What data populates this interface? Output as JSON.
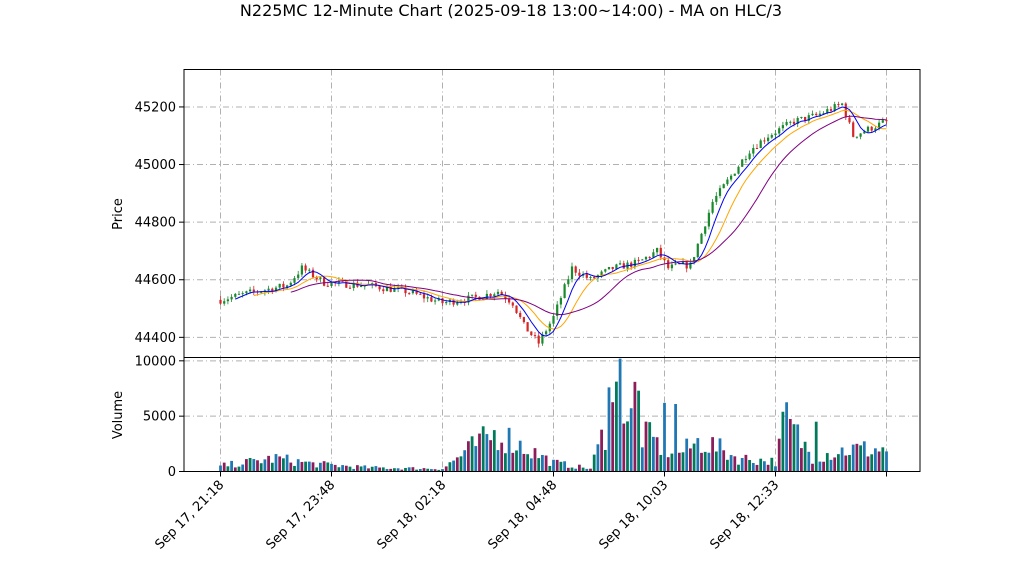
{
  "chart_data": {
    "type": "candlestick",
    "title": "N225MC 12-Minute Chart (2025-09-18 13:00~14:00) - MA on HLC/3",
    "price_panel": {
      "ylabel": "Price",
      "yticks": [
        44400,
        44600,
        44800,
        45000,
        45200
      ],
      "ylim": [
        44330,
        45330
      ],
      "grid": true
    },
    "volume_panel": {
      "ylabel": "Volume",
      "yticks": [
        0,
        5000,
        10000
      ],
      "ylim": [
        0,
        10300
      ],
      "grid": true
    },
    "xticks": [
      "Sep 17, 21:18",
      "Sep 17, 23:48",
      "Sep 18, 02:18",
      "Sep 18, 04:48",
      "Sep 18, 10:03",
      "Sep 18, 12:33"
    ],
    "bar_count": 181,
    "colors": {
      "up": "#1a8a2e",
      "down": "#d62728",
      "ma_short": "#0000ee",
      "ma_mid": "#ffa500",
      "ma_long": "#800080",
      "vol_a": "#1f77b4",
      "vol_b": "#8c1c5a",
      "vol_c": "#007a5a",
      "grid": "#b0b0b0"
    },
    "price_path": [
      [
        0,
        44530
      ],
      [
        8,
        44555
      ],
      [
        18,
        44580
      ],
      [
        22,
        44640
      ],
      [
        28,
        44590
      ],
      [
        40,
        44580
      ],
      [
        50,
        44560
      ],
      [
        60,
        44520
      ],
      [
        70,
        44540
      ],
      [
        75,
        44560
      ],
      [
        79,
        44520
      ],
      [
        82,
        44440
      ],
      [
        86,
        44380
      ],
      [
        90,
        44470
      ],
      [
        95,
        44640
      ],
      [
        100,
        44600
      ],
      [
        106,
        44640
      ],
      [
        113,
        44660
      ],
      [
        118,
        44700
      ],
      [
        121,
        44640
      ],
      [
        124,
        44650
      ],
      [
        127,
        44650
      ],
      [
        133,
        44870
      ],
      [
        138,
        44960
      ],
      [
        143,
        45050
      ],
      [
        148,
        45100
      ],
      [
        155,
        45150
      ],
      [
        161,
        45170
      ],
      [
        168,
        45210
      ],
      [
        171,
        45100
      ],
      [
        180,
        45150
      ]
    ],
    "volume_path": [
      [
        0,
        500
      ],
      [
        15,
        1200
      ],
      [
        25,
        700
      ],
      [
        40,
        350
      ],
      [
        60,
        250
      ],
      [
        68,
        2200
      ],
      [
        75,
        3500
      ],
      [
        82,
        2200
      ],
      [
        90,
        800
      ],
      [
        100,
        250
      ],
      [
        107,
        6500
      ],
      [
        113,
        3500
      ],
      [
        117,
        2800
      ],
      [
        120,
        2000
      ],
      [
        125,
        1800
      ],
      [
        130,
        2800
      ],
      [
        140,
        1200
      ],
      [
        150,
        900
      ],
      [
        153,
        4500
      ],
      [
        160,
        1400
      ],
      [
        170,
        2000
      ],
      [
        180,
        2000
      ]
    ],
    "volume_spikes": [
      [
        105,
        7600
      ],
      [
        108,
        10200
      ],
      [
        112,
        8100
      ],
      [
        113,
        7300
      ],
      [
        120,
        6200
      ],
      [
        123,
        6100
      ],
      [
        152,
        5400
      ],
      [
        161,
        4500
      ]
    ]
  }
}
